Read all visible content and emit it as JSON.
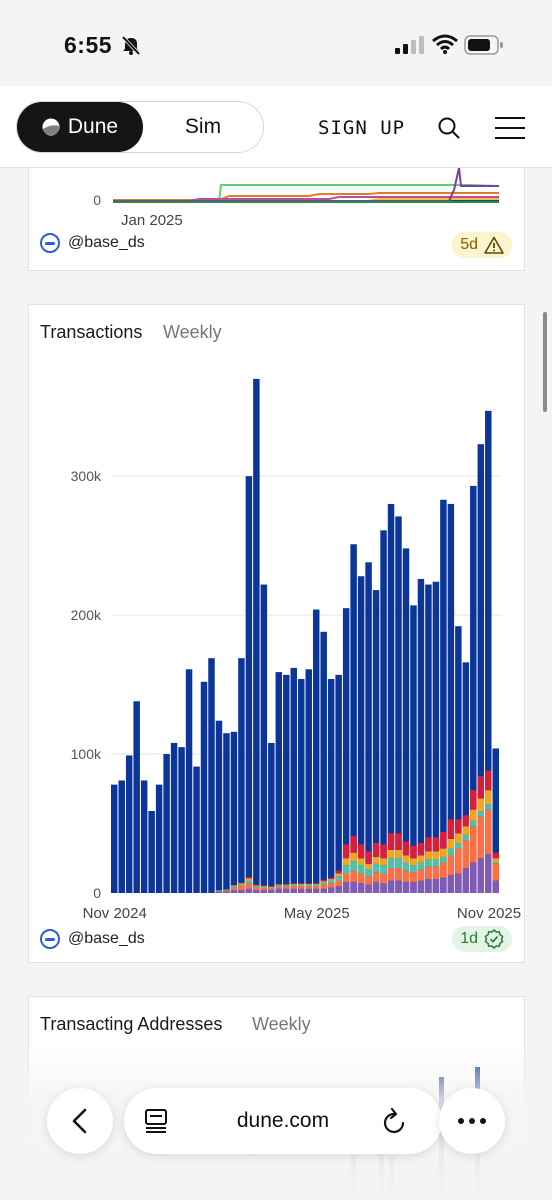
{
  "status": {
    "time": "6:55"
  },
  "nav": {
    "dune_label": "Dune",
    "sim_label": "Sim",
    "signup_label": "SIGN UP"
  },
  "card_top": {
    "ytick_zero": "0",
    "xtick": "Jan 2025",
    "author": "@base_ds",
    "age": "5d"
  },
  "card_main": {
    "title": "Transactions",
    "period": "Weekly",
    "author": "@base_ds",
    "age": "1d"
  },
  "card_next": {
    "title": "Transacting Addresses",
    "period": "Weekly"
  },
  "browser": {
    "url": "dune.com"
  },
  "colors": {
    "primary_series": "#0b3599",
    "warn": "#7a6300",
    "ok": "#2b7a3a"
  },
  "chart_data": {
    "type": "bar",
    "stacked": true,
    "grid": true,
    "yticks": [
      "0",
      "100k",
      "200k",
      "300k"
    ],
    "ytick_values": [
      0,
      100000,
      200000,
      300000
    ],
    "ylim": [
      0,
      380000
    ],
    "xticks": [
      {
        "label": "Nov 2024",
        "week": 0
      },
      {
        "label": "May 2025",
        "week": 27
      },
      {
        "label": "Nov 2025",
        "week": 53
      }
    ],
    "totals": [
      78000,
      81000,
      99000,
      138000,
      81000,
      59000,
      78000,
      100000,
      108000,
      105000,
      161000,
      91000,
      152000,
      169000,
      124000,
      115000,
      116000,
      169000,
      300000,
      370000,
      222000,
      108000,
      159000,
      157000,
      162000,
      154000,
      161000,
      204000,
      188000,
      154000,
      157000,
      205000,
      251000,
      228000,
      238000,
      218000,
      261000,
      280000,
      271000,
      248000,
      207000,
      226000,
      222000,
      224000,
      283000,
      280000,
      192000,
      166000,
      293000,
      323000,
      347000,
      104000
    ],
    "overlay": [
      [
        0,
        0,
        0,
        0,
        0,
        0,
        0,
        0,
        0,
        0,
        0,
        0,
        0,
        0,
        1000,
        1000,
        2000,
        2000,
        3000,
        2000,
        2000,
        2000,
        3000,
        3000,
        3000,
        3000,
        3000,
        3000,
        3000,
        4000,
        5000,
        8000,
        8000,
        7000,
        6000,
        8000,
        7000,
        9000,
        9000,
        8000,
        8000,
        9000,
        10000,
        10000,
        11000,
        13000,
        14000,
        18000,
        22000,
        25000,
        28000,
        9000
      ],
      [
        0,
        0,
        0,
        0,
        0,
        0,
        0,
        0,
        0,
        0,
        0,
        0,
        0,
        0,
        500,
        1000,
        2000,
        3000,
        4000,
        2000,
        1500,
        1000,
        1500,
        1500,
        2000,
        2000,
        2000,
        2000,
        3000,
        3000,
        4000,
        6000,
        8000,
        7000,
        6000,
        7000,
        7000,
        9000,
        9000,
        8000,
        7000,
        8000,
        9000,
        9000,
        11000,
        14000,
        18000,
        20000,
        26000,
        30000,
        32000,
        12000
      ],
      [
        0,
        0,
        0,
        0,
        0,
        0,
        0,
        0,
        0,
        0,
        0,
        0,
        0,
        0,
        500,
        500,
        1000,
        1000,
        2000,
        1000,
        1000,
        1000,
        1000,
        1000,
        1000,
        1000,
        1000,
        1000,
        1500,
        2000,
        3000,
        6000,
        7000,
        6000,
        5000,
        6000,
        6000,
        7000,
        7000,
        6000,
        5000,
        5000,
        5000,
        5000,
        4000,
        5000,
        4000,
        4000,
        4000,
        4000,
        4000,
        1000
      ],
      [
        0,
        0,
        0,
        0,
        0,
        0,
        0,
        0,
        0,
        0,
        0,
        0,
        0,
        0,
        0,
        0,
        500,
        1000,
        1500,
        500,
        500,
        500,
        500,
        500,
        500,
        500,
        500,
        500,
        1000,
        1000,
        2000,
        5000,
        6000,
        5000,
        4000,
        5000,
        5000,
        6000,
        6000,
        5000,
        5000,
        5000,
        6000,
        6000,
        6000,
        7000,
        7000,
        6000,
        8000,
        9000,
        10000,
        3000
      ],
      [
        0,
        0,
        0,
        0,
        0,
        0,
        0,
        0,
        0,
        0,
        0,
        0,
        0,
        0,
        0,
        0,
        0,
        500,
        1000,
        500,
        500,
        500,
        500,
        500,
        500,
        500,
        500,
        500,
        1000,
        1000,
        2000,
        10000,
        12000,
        10000,
        9000,
        10000,
        10000,
        12000,
        12000,
        10000,
        9000,
        9000,
        10000,
        10000,
        12000,
        14000,
        10000,
        8000,
        14000,
        16000,
        14000,
        4000
      ]
    ],
    "overlay_colors": [
      "#7f5bb3",
      "#ff6f42",
      "#4fc1a6",
      "#f3a51c",
      "#d81f3a"
    ]
  }
}
